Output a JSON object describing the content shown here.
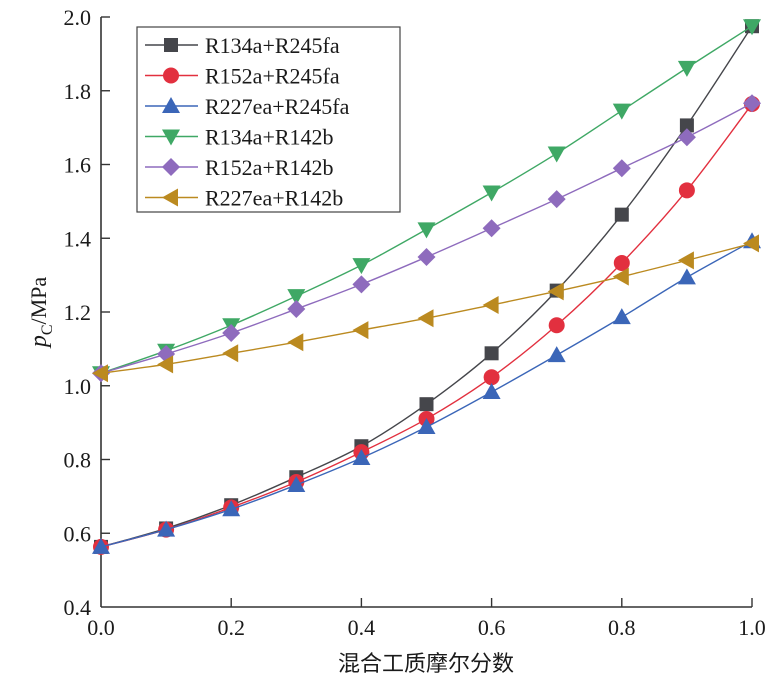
{
  "chart_data": {
    "type": "line",
    "title": "",
    "xlabel": "混合工质摩尔分数",
    "ylabel": {
      "symbol": "p",
      "subscript": "C",
      "unit": "/MPa"
    },
    "xlim": [
      0.0,
      1.0
    ],
    "ylim": [
      0.4,
      2.0
    ],
    "xticks": [
      "0.0",
      "0.2",
      "0.4",
      "0.6",
      "0.8",
      "1.0"
    ],
    "yticks": [
      "0.4",
      "0.6",
      "0.8",
      "1.0",
      "1.2",
      "1.4",
      "1.6",
      "1.8",
      "2.0"
    ],
    "grid": false,
    "legend_position": "top-left",
    "x": [
      0.0,
      0.1,
      0.2,
      0.3,
      0.4,
      0.5,
      0.6,
      0.7,
      0.8,
      0.9,
      1.0
    ],
    "series": [
      {
        "name": "R134a+R245fa",
        "marker": "square",
        "color": "#45464b",
        "values": [
          0.563,
          0.613,
          0.676,
          0.752,
          0.836,
          0.95,
          1.088,
          1.258,
          1.464,
          1.706,
          1.975
        ]
      },
      {
        "name": "R152a+R245fa",
        "marker": "circle",
        "color": "#e2303f",
        "values": [
          0.563,
          0.61,
          0.67,
          0.739,
          0.82,
          0.91,
          1.023,
          1.164,
          1.333,
          1.53,
          1.764
        ]
      },
      {
        "name": "R227ea+R245fa",
        "marker": "triangle-up",
        "color": "#3b66b8",
        "values": [
          0.563,
          0.61,
          0.665,
          0.731,
          0.804,
          0.888,
          0.983,
          1.083,
          1.186,
          1.294,
          1.392
        ]
      },
      {
        "name": "R134a+R142b",
        "marker": "triangle-down",
        "color": "#3fa865",
        "values": [
          1.034,
          1.095,
          1.164,
          1.243,
          1.327,
          1.424,
          1.524,
          1.63,
          1.746,
          1.862,
          1.975
        ]
      },
      {
        "name": "R152a+R142b",
        "marker": "diamond",
        "color": "#8e6bbd",
        "values": [
          1.034,
          1.086,
          1.143,
          1.208,
          1.275,
          1.349,
          1.427,
          1.506,
          1.59,
          1.674,
          1.766
        ]
      },
      {
        "name": "R227ea+R142b",
        "marker": "triangle-left",
        "color": "#bb8a20",
        "values": [
          1.034,
          1.058,
          1.088,
          1.118,
          1.151,
          1.183,
          1.219,
          1.256,
          1.296,
          1.34,
          1.386
        ]
      }
    ]
  }
}
